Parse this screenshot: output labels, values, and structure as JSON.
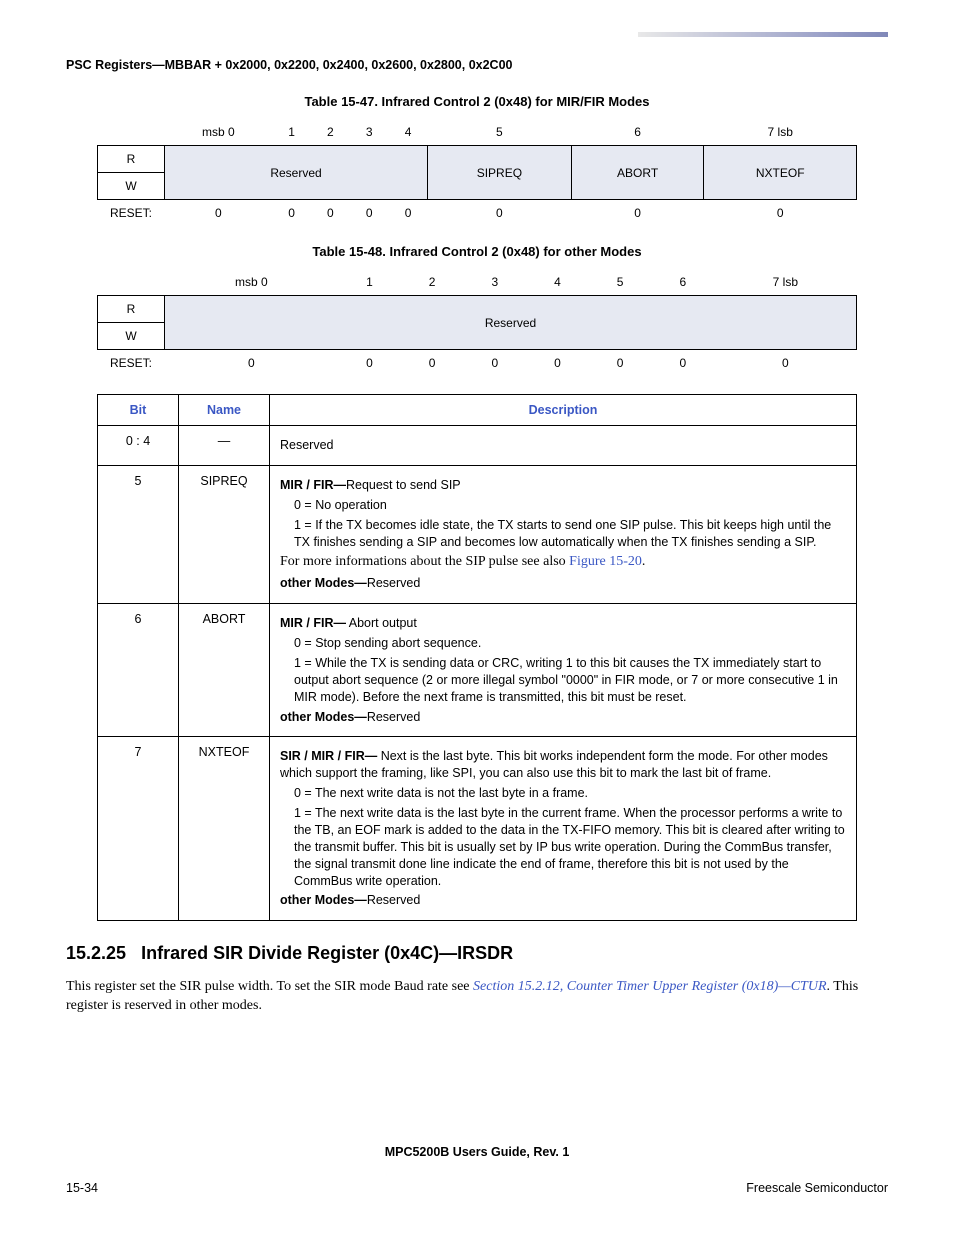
{
  "header": "PSC Registers—MBBAR + 0x2000, 0x2200, 0x2400, 0x2600, 0x2800, 0x2C00",
  "table47": {
    "caption": "Table 15-47. Infrared Control 2 (0x48) for MIR/FIR Modes",
    "bits": [
      "msb 0",
      "1",
      "2",
      "3",
      "4",
      "5",
      "6",
      "7 lsb"
    ],
    "r_label": "R",
    "w_label": "W",
    "reset_label": "RESET:",
    "reserved_label": "Reserved",
    "fields": {
      "sipreq": "SIPREQ",
      "abort": "ABORT",
      "nxteof": "NXTEOF"
    },
    "reset": [
      "0",
      "0",
      "0",
      "0",
      "0",
      "0",
      "0",
      "0"
    ]
  },
  "table48": {
    "caption": "Table 15-48. Infrared Control 2 (0x48) for other Modes",
    "bits": [
      "msb 0",
      "1",
      "2",
      "3",
      "4",
      "5",
      "6",
      "7 lsb"
    ],
    "r_label": "R",
    "w_label": "W",
    "reset_label": "RESET:",
    "reserved_label": "Reserved",
    "reset": [
      "0",
      "0",
      "0",
      "0",
      "0",
      "0",
      "0",
      "0"
    ]
  },
  "desc": {
    "headers": {
      "bit": "Bit",
      "name": "Name",
      "desc": "Description"
    },
    "rows": [
      {
        "bit": "0 : 4",
        "name": "—",
        "lines": [
          "Reserved"
        ]
      },
      {
        "bit": "5",
        "name": "SIPREQ",
        "title": "MIR / FIR—",
        "title_after": "Request to send SIP",
        "v0": "0 = No operation",
        "v1": "1 = If the TX becomes idle state, the TX starts to send one SIP pulse. This bit keeps high until the TX finishes sending a SIP and becomes low automatically when the TX finishes sending a SIP.",
        "note_pre": "For more informations about the SIP pulse see also ",
        "note_link": "Figure 15-20",
        "note_post": ".",
        "other": "other Modes—",
        "other_after": "Reserved"
      },
      {
        "bit": "6",
        "name": "ABORT",
        "title": "MIR / FIR—",
        "title_after": " Abort output",
        "v0": "0 = Stop sending abort sequence.",
        "v1": "1 = While the TX is sending data or CRC, writing 1 to this bit causes the TX immediately start to output abort sequence (2 or more illegal symbol \"0000\" in FIR mode, or 7 or more consecutive 1 in MIR mode). Before the next frame is transmitted, this bit must be reset.",
        "other": "other Modes—",
        "other_after": "Reserved"
      },
      {
        "bit": "7",
        "name": "NXTEOF",
        "title": "SIR / MIR / FIR—",
        "title_after": " Next is the last byte. This bit works independent form the mode. For other modes which support the framing, like SPI, you can also use this bit to mark the last bit of frame.",
        "v0": "0 = The next write data is not the last byte in a frame.",
        "v1": "1 = The next write data is the last byte in the current frame. When the processor performs a write to the TB, an EOF mark is added to the data in the TX-FIFO memory. This bit is cleared after writing to the transmit buffer. This bit is usually set by IP bus write operation. During the CommBus transfer, the signal transmit done line indicate the end of frame, therefore this bit is not used by the CommBus write operation.",
        "other": "other Modes—",
        "other_after": "Reserved"
      }
    ]
  },
  "section": {
    "num": "15.2.25",
    "title": "Infrared SIR Divide Register (0x4C)—IRSDR",
    "body_pre": "This register set the SIR pulse width. To set the SIR mode Baud rate see ",
    "body_link": "Section 15.2.12, Counter Timer Upper Register (0x18)—CTUR",
    "body_post": ". This register is reserved in other modes."
  },
  "footer": {
    "center": "MPC5200B Users Guide, Rev. 1",
    "left": "15-34",
    "right": "Freescale Semiconductor"
  }
}
